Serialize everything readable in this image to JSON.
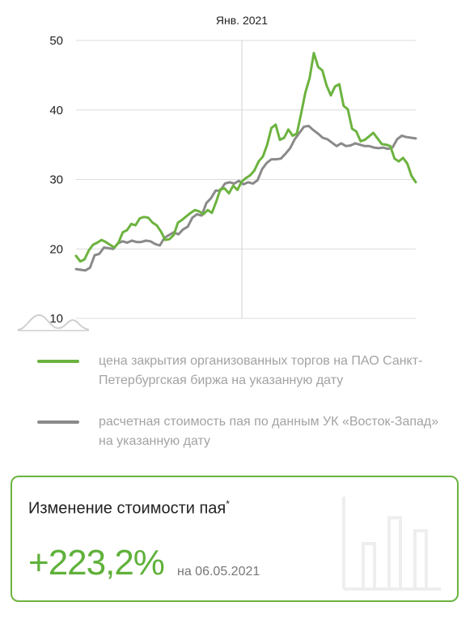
{
  "chart_data": {
    "type": "line",
    "x_annotation": "Янв. 2021",
    "ylim": [
      10,
      50
    ],
    "yticks": [
      "50",
      "40",
      "30",
      "20",
      "10"
    ],
    "grid": true,
    "legend_position": "bottom",
    "series": [
      {
        "name": "цена закрытия организованных торгов на ПАО Санкт-Петербургская биржа на указанную дату",
        "color": "#6cb33f",
        "values": [
          19.0,
          18.2,
          18.5,
          19.8,
          20.6,
          20.9,
          21.3,
          21.0,
          20.6,
          20.2,
          20.9,
          22.4,
          22.7,
          23.6,
          23.4,
          24.4,
          24.6,
          24.5,
          23.8,
          23.4,
          22.5,
          21.3,
          21.4,
          22.0,
          23.8,
          24.2,
          24.7,
          25.2,
          25.6,
          25.4,
          25.0,
          25.6,
          25.2,
          26.8,
          28.6,
          28.7,
          28.0,
          29.1,
          28.5,
          29.7,
          30.2,
          30.6,
          31.3,
          32.6,
          33.3,
          35.0,
          37.4,
          37.9,
          35.7,
          36.0,
          37.2,
          36.3,
          36.6,
          39.5,
          42.5,
          44.6,
          48.2,
          46.2,
          45.7,
          43.5,
          42.1,
          43.4,
          43.7,
          40.6,
          40.1,
          37.3,
          36.9,
          35.5,
          35.7,
          36.2,
          36.7,
          35.9,
          35.1,
          35.0,
          34.8,
          33.0,
          32.6,
          33.1,
          32.3,
          30.5,
          29.6
        ]
      },
      {
        "name": "расчетная стоимость пая по данным УК «Восток-Запад» на указанную дату",
        "color": "#8a8a8a",
        "values": [
          17.1,
          17.0,
          16.9,
          17.3,
          19.1,
          19.3,
          20.2,
          20.1,
          20.0,
          20.8,
          21.1,
          20.9,
          21.2,
          21.0,
          21.0,
          21.2,
          21.1,
          20.7,
          20.5,
          21.6,
          22.0,
          22.4,
          22.1,
          22.8,
          23.2,
          24.5,
          25.0,
          24.8,
          26.6,
          27.3,
          28.4,
          28.4,
          29.4,
          29.6,
          29.4,
          29.8,
          29.3,
          29.6,
          29.4,
          29.9,
          31.5,
          32.4,
          32.9,
          32.9,
          33.0,
          33.7,
          34.5,
          35.8,
          36.7,
          37.6,
          37.7,
          37.1,
          36.6,
          36.0,
          35.8,
          35.3,
          34.8,
          35.2,
          34.8,
          34.9,
          35.2,
          35.0,
          34.8,
          34.8,
          34.6,
          34.5,
          34.6,
          34.4,
          34.6,
          35.8,
          36.3,
          36.1,
          36.0,
          35.9
        ]
      }
    ]
  },
  "legend": [
    {
      "label": "цена закрытия организованных торгов на ПАО Санкт-Петербургская биржа на указанную дату",
      "color": "#6cb33f"
    },
    {
      "label": "расчетная стоимость пая по данным УК «Восток-Запад» на указанную дату",
      "color": "#8a8a8a"
    }
  ],
  "card": {
    "title": "Изменение стоимости пая",
    "title_mark": "*",
    "value": "+223,2%",
    "date": "на 06.05.2021"
  }
}
